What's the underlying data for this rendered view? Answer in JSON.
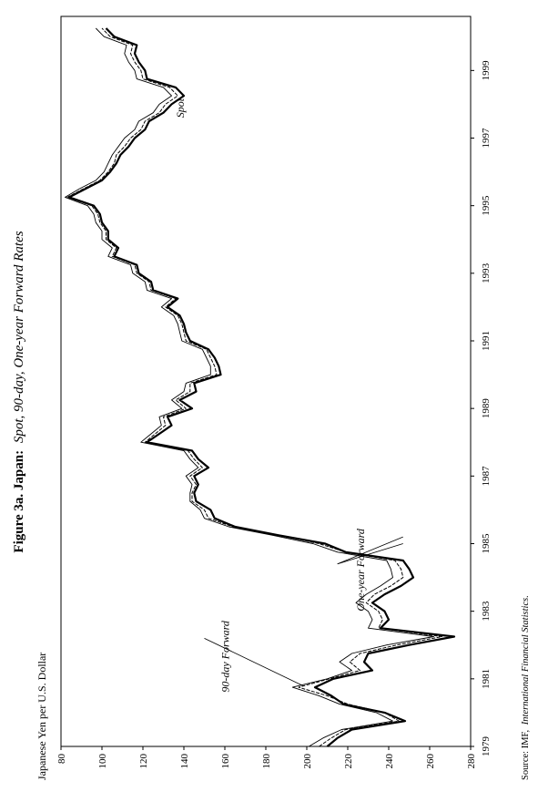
{
  "chart_data": {
    "type": "line",
    "title_bold": "Figure 3a. Japan:",
    "title_italic": "Spot, 90-day, One-year Forward Rates",
    "ylabel": "Japanese Yen per U.S. Dollar",
    "source_prefix": "Source: IMF,",
    "source_italic": "International Financial Statistics.",
    "ylim": [
      80,
      280
    ],
    "xlim": [
      1979.0,
      2000.6
    ],
    "y_ticks": [
      80,
      100,
      120,
      140,
      160,
      180,
      200,
      220,
      240,
      260,
      280
    ],
    "x_ticks": [
      1979,
      1981,
      1983,
      1985,
      1987,
      1989,
      1991,
      1993,
      1995,
      1997,
      1999
    ],
    "grid": false,
    "legend": "none",
    "annotations": [
      {
        "text": "Spot",
        "x": 1997.6,
        "y": 140
      },
      {
        "text": "90-day Forward",
        "x": 1980.6,
        "y": 162
      },
      {
        "text": "One-year Forward",
        "x": 1983.0,
        "y": 228
      }
    ],
    "series": [
      {
        "name": "Spot",
        "x": [
          1979.0,
          1979.25,
          1979.5,
          1979.75,
          1980.0,
          1980.25,
          1980.5,
          1980.75,
          1981.0,
          1981.25,
          1981.5,
          1981.75,
          1982.0,
          1982.25,
          1982.5,
          1982.75,
          1983.0,
          1983.25,
          1983.5,
          1983.75,
          1984.0,
          1984.25,
          1984.5,
          1984.75,
          1985.0,
          1985.25,
          1985.5,
          1985.75,
          1986.0,
          1986.25,
          1986.5,
          1986.75,
          1987.0,
          1987.25,
          1987.5,
          1987.75,
          1988.0,
          1988.25,
          1988.5,
          1988.75,
          1989.0,
          1989.25,
          1989.5,
          1989.75,
          1990.0,
          1990.25,
          1990.5,
          1990.75,
          1991.0,
          1991.25,
          1991.5,
          1991.75,
          1992.0,
          1992.25,
          1992.5,
          1992.75,
          1993.0,
          1993.25,
          1993.5,
          1993.75,
          1994.0,
          1994.25,
          1994.5,
          1994.75,
          1995.0,
          1995.25,
          1995.5,
          1995.75,
          1996.0,
          1996.25,
          1996.5,
          1996.75,
          1997.0,
          1997.25,
          1997.5,
          1997.75,
          1998.0,
          1998.25,
          1998.5,
          1998.75,
          1999.0,
          1999.25,
          1999.5,
          1999.75,
          2000.0,
          2000.25
        ],
        "values": [
          210,
          215,
          222,
          248,
          238,
          218,
          212,
          204,
          213,
          232,
          228,
          230,
          250,
          272,
          236,
          240,
          238,
          232,
          238,
          246,
          252,
          250,
          247,
          219,
          209,
          186,
          165,
          155,
          153,
          146,
          145,
          147,
          145,
          152,
          147,
          144,
          122,
          128,
          134,
          132,
          144,
          138,
          146,
          145,
          158,
          157,
          155,
          152,
          143,
          141,
          140,
          138,
          132,
          137,
          125,
          124,
          118,
          117,
          106,
          108,
          103,
          103,
          100,
          99,
          96,
          84,
          92,
          100,
          104,
          107,
          109,
          113,
          116,
          121,
          123,
          130,
          134,
          140,
          136,
          122,
          121,
          118,
          116,
          117,
          106,
          102
        ]
      },
      {
        "name": "90-day Forward",
        "x": [
          1979.0,
          1979.25,
          1979.5,
          1979.75,
          1980.0,
          1980.25,
          1980.5,
          1980.75,
          1981.0,
          1981.25,
          1981.5,
          1981.75,
          1982.0,
          1982.25,
          1982.5,
          1982.75,
          1983.0,
          1983.25,
          1983.5,
          1983.75,
          1984.0,
          1984.25,
          1984.5,
          1984.75,
          1985.0,
          1985.25,
          1985.5,
          1985.75,
          1986.0,
          1986.25,
          1986.5,
          1986.75,
          1987.0,
          1987.25,
          1987.5,
          1987.75,
          1988.0,
          1988.25,
          1988.5,
          1988.75,
          1989.0,
          1989.25,
          1989.5,
          1989.75,
          1990.0,
          1990.25,
          1990.5,
          1990.75,
          1991.0,
          1991.25,
          1991.5,
          1991.75,
          1992.0,
          1992.25,
          1992.5,
          1992.75,
          1993.0,
          1993.25,
          1993.5,
          1993.75,
          1994.0,
          1994.25,
          1994.5,
          1994.75,
          1995.0,
          1995.25,
          1995.5,
          1995.75,
          1996.0,
          1996.25,
          1996.5,
          1996.75,
          1997.0,
          1997.25,
          1997.5,
          1997.75,
          1998.0,
          1998.25,
          1998.5,
          1998.75,
          1999.0,
          1999.25,
          1999.5,
          1999.75,
          2000.0,
          2000.25
        ],
        "values": [
          206,
          212,
          219,
          245,
          238,
          220,
          210,
          196,
          211,
          226,
          221,
          226,
          244,
          266,
          235,
          237,
          235,
          229,
          233,
          241,
          247,
          246,
          243,
          219,
          206,
          186,
          164,
          152,
          150,
          144,
          144,
          146,
          143,
          149,
          145,
          142,
          121,
          126,
          131,
          130,
          141,
          136,
          143,
          143,
          156,
          155,
          153,
          151,
          141,
          140,
          139,
          137,
          131,
          136,
          124,
          123,
          117,
          116,
          105,
          107,
          102,
          102,
          99,
          98,
          95,
          83,
          91,
          99,
          103,
          106,
          107,
          111,
          114,
          119,
          121,
          128,
          131,
          137,
          133,
          120,
          119,
          116,
          114,
          115,
          104,
          100
        ]
      },
      {
        "name": "One-year Forward",
        "x": [
          1979.0,
          1979.25,
          1979.5,
          1979.75,
          1980.0,
          1980.25,
          1980.5,
          1980.75,
          1981.0,
          1981.25,
          1981.5,
          1981.75,
          1982.0,
          1982.25,
          1982.5,
          1982.75,
          1983.0,
          1983.25,
          1983.5,
          1983.75,
          1984.0,
          1984.25,
          1984.5,
          1984.75,
          1985.0,
          1985.25,
          1985.5,
          1985.75,
          1986.0,
          1986.25,
          1986.5,
          1986.75,
          1987.0,
          1987.25,
          1987.5,
          1987.75,
          1988.0,
          1988.25,
          1988.5,
          1988.75,
          1989.0,
          1989.25,
          1989.5,
          1989.75,
          1990.0,
          1990.25,
          1990.5,
          1990.75,
          1991.0,
          1991.25,
          1991.5,
          1991.75,
          1992.0,
          1992.25,
          1992.5,
          1992.75,
          1993.0,
          1993.25,
          1993.5,
          1993.75,
          1994.0,
          1994.25,
          1994.5,
          1994.75,
          1995.0,
          1995.25,
          1995.5,
          1995.75,
          1996.0,
          1996.25,
          1996.5,
          1996.75,
          1997.0,
          1997.25,
          1997.5,
          1997.75,
          1998.0,
          1998.25,
          1998.5,
          1998.75,
          1999.0,
          1999.25,
          1999.5,
          1999.75,
          2000.0,
          2000.25
        ],
        "values": [
          201,
          208,
          217,
          242,
          234,
          216,
          206,
          193,
          210,
          222,
          216,
          222,
          239,
          262,
          230,
          232,
          230,
          224,
          229,
          236,
          242,
          241,
          239,
          215,
          203,
          183,
          162,
          150,
          148,
          143,
          143,
          144,
          141,
          147,
          143,
          140,
          119,
          124,
          129,
          128,
          139,
          134,
          140,
          141,
          153,
          153,
          151,
          149,
          139,
          138,
          137,
          135,
          129,
          134,
          122,
          121,
          115,
          114,
          103,
          105,
          100,
          100,
          97,
          96,
          93,
          82,
          89,
          97,
          101,
          103,
          105,
          108,
          111,
          116,
          118,
          125,
          128,
          134,
          130,
          117,
          116,
          113,
          111,
          112,
          101,
          97
        ]
      }
    ]
  }
}
